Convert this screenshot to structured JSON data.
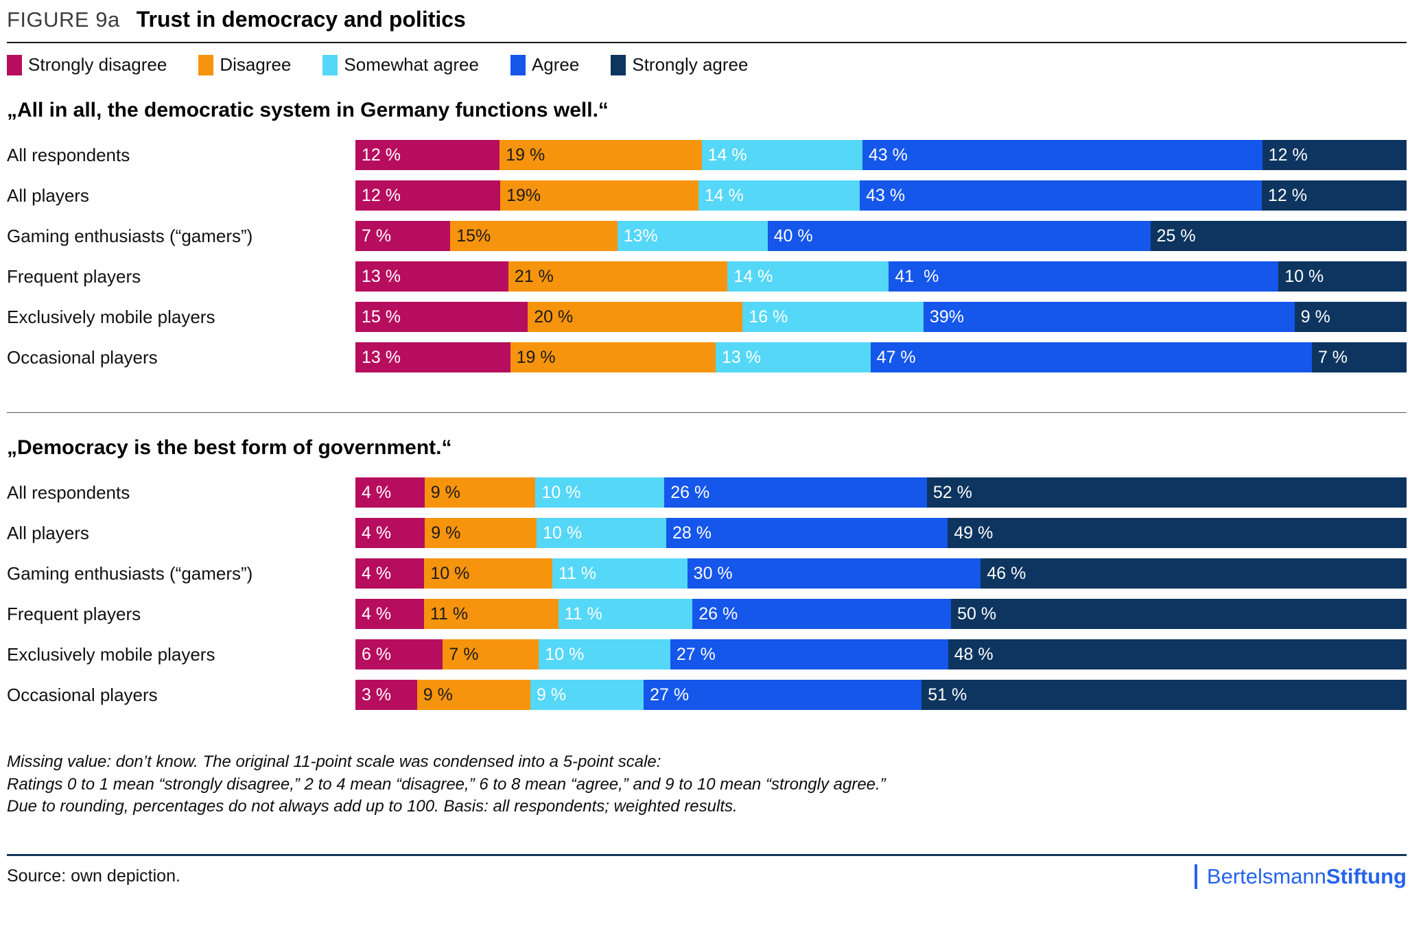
{
  "header": {
    "figure_label": "FIGURE 9a",
    "title": "Trust in democracy and politics"
  },
  "legend": [
    {
      "label": "Strongly disagree",
      "color": "#b70d5e",
      "value_text_color": "#ffffff"
    },
    {
      "label": "Disagree",
      "color": "#f7940e",
      "value_text_color": "#1a1a1a"
    },
    {
      "label": "Somewhat agree",
      "color": "#55d7f8",
      "value_text_color": "#ffffff"
    },
    {
      "label": "Agree",
      "color": "#1556eb",
      "value_text_color": "#ffffff"
    },
    {
      "label": "Strongly agree",
      "color": "#0d355f",
      "value_text_color": "#ffffff"
    }
  ],
  "chart_data": [
    {
      "type": "bar",
      "stacked": true,
      "orientation": "horizontal",
      "unit": "%",
      "xlim": [
        0,
        100
      ],
      "title": "„All in all, the democratic system in Germany functions well.“",
      "series_names": [
        "Strongly disagree",
        "Disagree",
        "Somewhat agree",
        "Agree",
        "Strongly agree"
      ],
      "rows": [
        {
          "category": "All respondents",
          "values": [
            12,
            19,
            14,
            43,
            12
          ],
          "labels": [
            "12 %",
            "19 %",
            "14 %",
            "43 %",
            "12 %"
          ]
        },
        {
          "category": "All players",
          "values": [
            12,
            19,
            14,
            43,
            12
          ],
          "labels": [
            "12 %",
            "19%",
            "14 %",
            "43 %",
            "12 %"
          ]
        },
        {
          "category": "Gaming enthusiasts (“gamers”)",
          "values": [
            7,
            15,
            13,
            40,
            25
          ],
          "labels": [
            "7 %",
            "15%",
            "13%",
            "40 %",
            "25 %"
          ]
        },
        {
          "category": "Frequent players",
          "values": [
            13,
            21,
            14,
            41,
            10
          ],
          "labels": [
            "13 %",
            "21 %",
            "14 %",
            "41  %",
            "10 %"
          ]
        },
        {
          "category": "Exclusively mobile players",
          "values": [
            15,
            20,
            16,
            39,
            9
          ],
          "labels": [
            "15 %",
            "20 %",
            "16 %",
            "39%",
            "9 %"
          ]
        },
        {
          "category": "Occasional players",
          "values": [
            13,
            19,
            13,
            47,
            7
          ],
          "labels": [
            "13 %",
            "19 %",
            "13 %",
            "47 %",
            "7 %"
          ]
        }
      ]
    },
    {
      "type": "bar",
      "stacked": true,
      "orientation": "horizontal",
      "unit": "%",
      "xlim": [
        0,
        100
      ],
      "title": "„Democracy is the best form of government.“",
      "series_names": [
        "Strongly disagree",
        "Disagree",
        "Somewhat agree",
        "Agree",
        "Strongly agree"
      ],
      "rows": [
        {
          "category": "All respondents",
          "values": [
            4,
            9,
            10,
            26,
            52
          ],
          "labels": [
            "4 %",
            "9 %",
            "10 %",
            "26 %",
            "52 %"
          ]
        },
        {
          "category": "All players",
          "values": [
            4,
            9,
            10,
            28,
            49
          ],
          "labels": [
            "4 %",
            "9 %",
            "10 %",
            "28 %",
            "49 %"
          ]
        },
        {
          "category": "Gaming enthusiasts (“gamers”)",
          "values": [
            4,
            10,
            11,
            30,
            46
          ],
          "labels": [
            "4 %",
            "10 %",
            "11 %",
            "30 %",
            "46 %"
          ]
        },
        {
          "category": "Frequent players",
          "values": [
            4,
            11,
            11,
            26,
            50
          ],
          "labels": [
            "4 %",
            "11 %",
            "11 %",
            "26 %",
            "50 %"
          ]
        },
        {
          "category": "Exclusively mobile players",
          "values": [
            6,
            7,
            10,
            27,
            48
          ],
          "labels": [
            "6 %",
            "7 %",
            "10 %",
            "27 %",
            "48 %"
          ]
        },
        {
          "category": "Occasional players",
          "values": [
            3,
            9,
            9,
            27,
            51
          ],
          "labels": [
            "3 %",
            "9 %",
            "9 %",
            "27 %",
            "51 %"
          ]
        }
      ]
    }
  ],
  "footnotes": [
    "Missing value: don’t know. The original 11-point scale was condensed into a 5-point scale:",
    "Ratings 0 to 1 mean “strongly disagree,” 2 to 4 mean “disagree,” 6 to 8 mean “agree,” and 9 to 10 mean “strongly agree.”",
    "Due to rounding, percentages do not always add up to 100. Basis: all respondents; weighted results."
  ],
  "footer": {
    "source": "Source: own depiction.",
    "logo_regular": "Bertelsmann",
    "logo_bold": "Stiftung",
    "logo_color": "#2563eb"
  }
}
